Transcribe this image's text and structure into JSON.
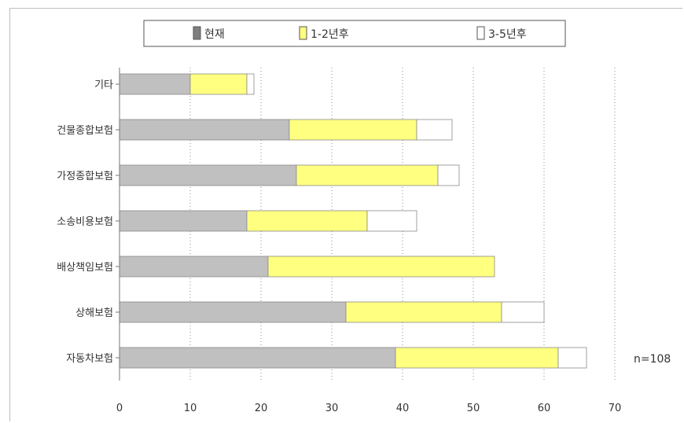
{
  "chart_data": {
    "type": "bar",
    "stacked": true,
    "orientation": "horizontal",
    "categories": [
      "기타",
      "건물종합보험",
      "가정종합보험",
      "소송비용보험",
      "배상책임보험",
      "상해보험",
      "자동차보험"
    ],
    "series": [
      {
        "name": "현재",
        "color": "#c0c0c0",
        "values": [
          10,
          24,
          25,
          18,
          21,
          32,
          39
        ]
      },
      {
        "name": "1-2년후",
        "color": "#ffff80",
        "values": [
          8,
          18,
          20,
          17,
          32,
          22,
          23
        ]
      },
      {
        "name": "3-5년후",
        "color": "#ffffff",
        "values": [
          1,
          5,
          3,
          7,
          0,
          6,
          4
        ]
      }
    ],
    "xlim": [
      0,
      70
    ],
    "xticks": [
      "0",
      "10",
      "20",
      "30",
      "40",
      "50",
      "60",
      "70"
    ],
    "grid": "vertical-dotted",
    "legend_position": "top",
    "annotation": "n=108"
  }
}
